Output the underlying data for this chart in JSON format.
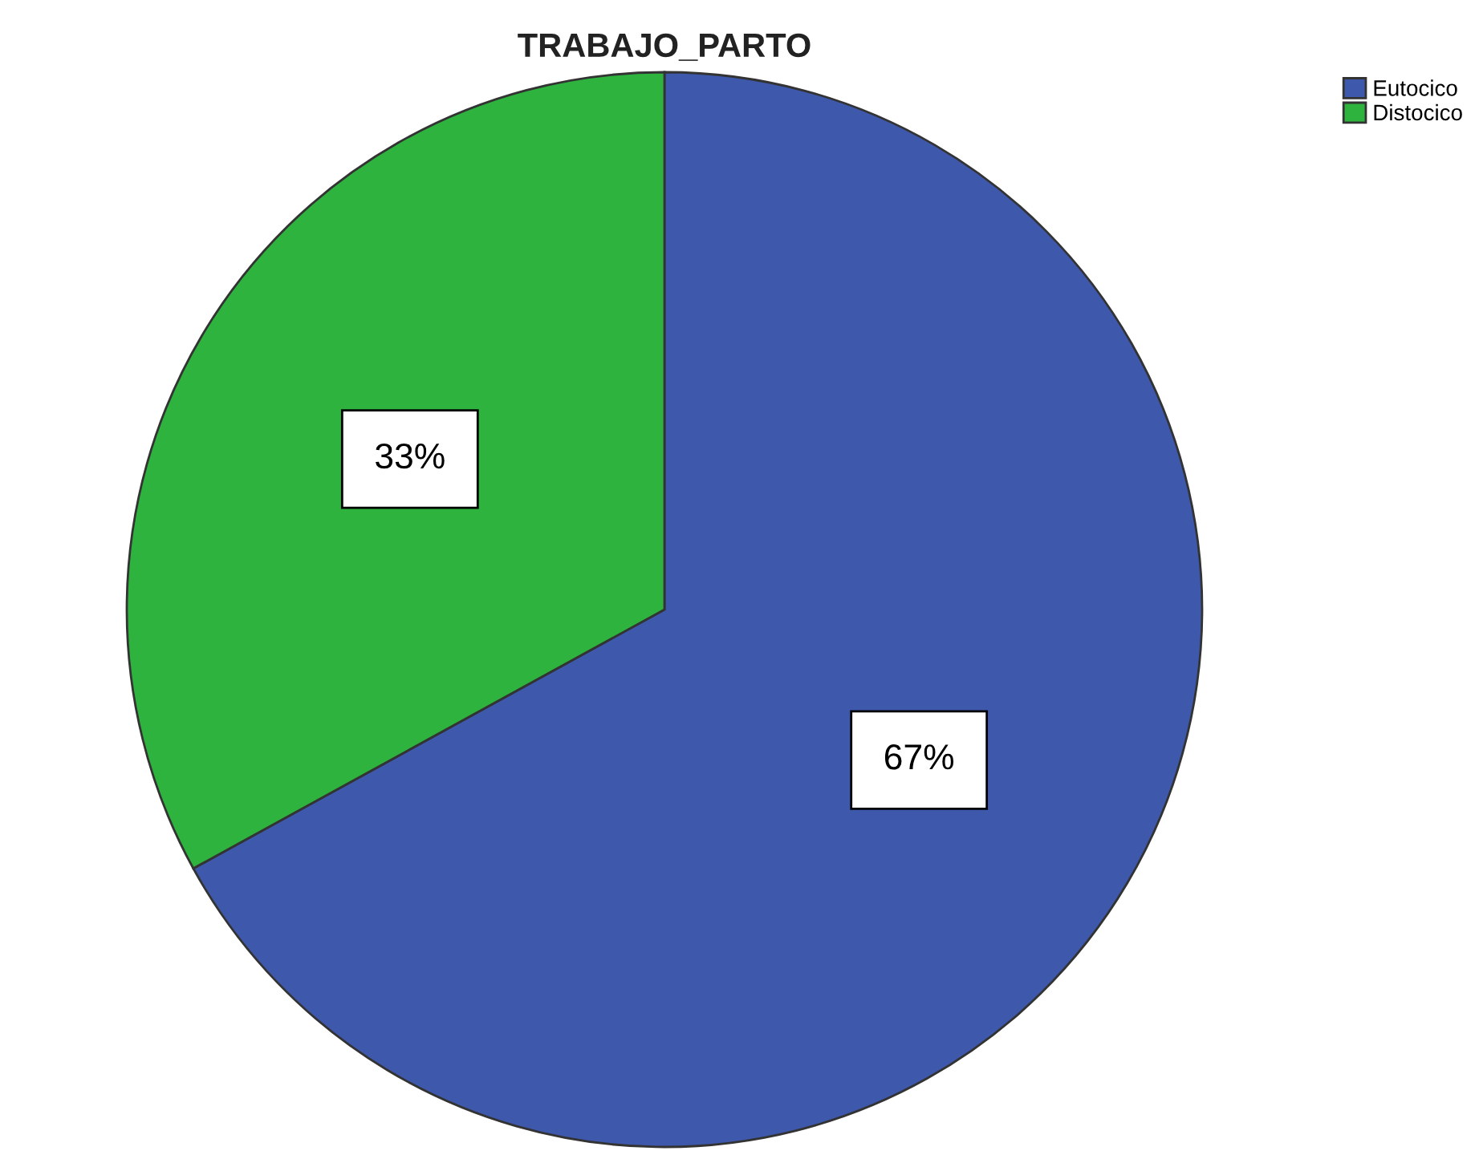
{
  "chart_data": {
    "type": "pie",
    "title": "TRABAJO_PARTO",
    "categories": [
      "Eutocico",
      "Distocico"
    ],
    "values": [
      67,
      33
    ],
    "colors": [
      "#3e58ac",
      "#2eb43e"
    ],
    "value_labels": [
      "67%",
      "33%"
    ],
    "legend": "top right"
  }
}
